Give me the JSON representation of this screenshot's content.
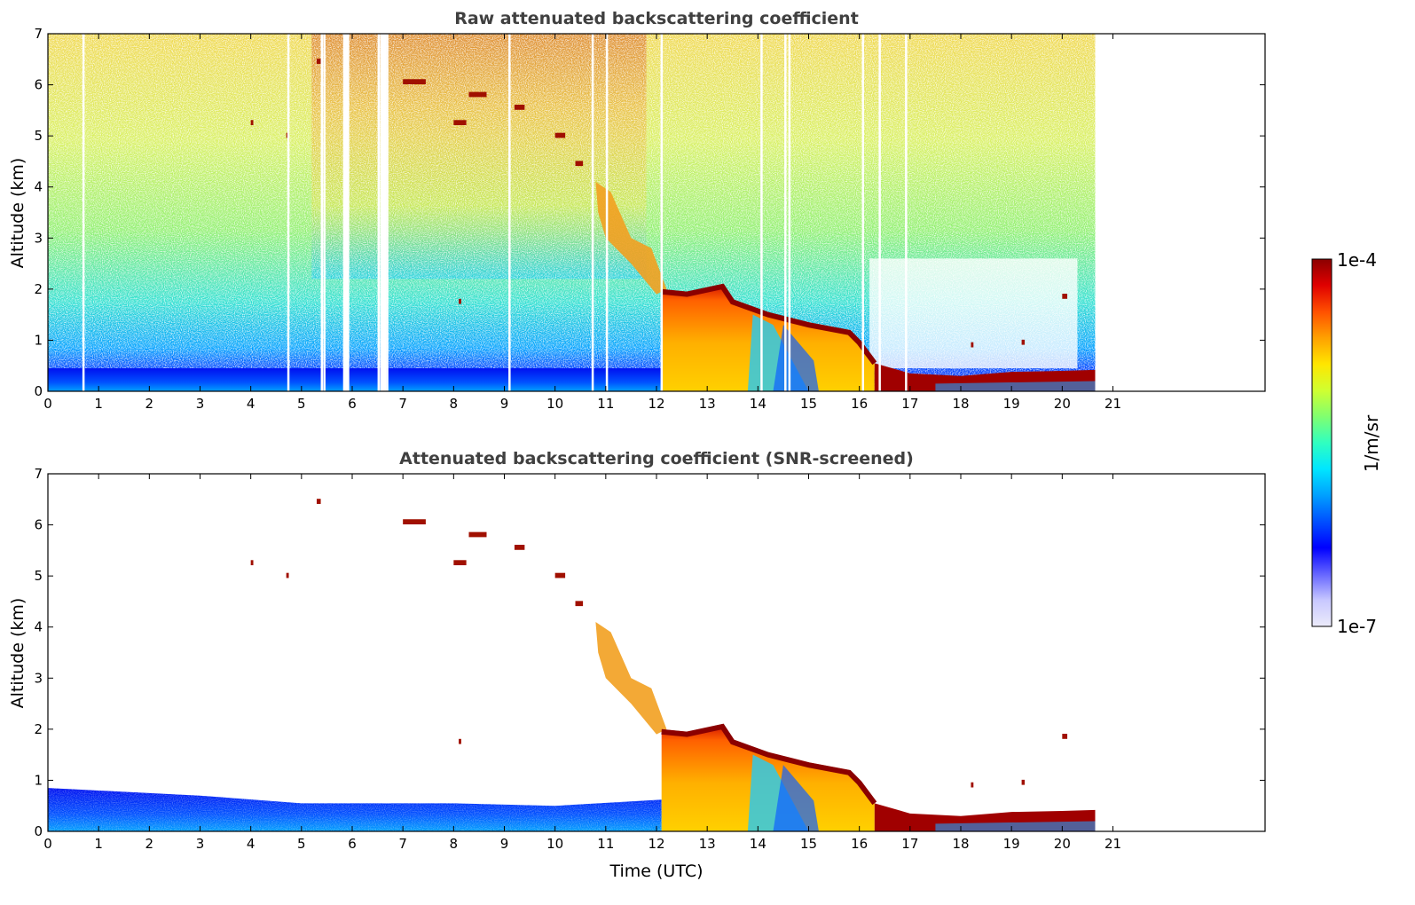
{
  "chart_data": [
    {
      "type": "heatmap",
      "title": "Raw attenuated backscattering coefficient",
      "xlabel": "",
      "ylabel": "Altitude (km)",
      "xlim": [
        0,
        24
      ],
      "ylim": [
        0,
        7
      ],
      "xticks": [
        0,
        1,
        2,
        3,
        4,
        5,
        6,
        7,
        8,
        9,
        10,
        11,
        12,
        13,
        14,
        15,
        16,
        17,
        18,
        19,
        20,
        21
      ],
      "yticks": [
        0,
        1,
        2,
        3,
        4,
        5,
        6,
        7
      ],
      "data_end_time": 20.65,
      "white_gaps_time": [
        0.68,
        4.72,
        5.38,
        5.43,
        5.82,
        5.84,
        6.5,
        6.55,
        6.67,
        9.08,
        10.72,
        11.0,
        12.08,
        14.05,
        14.52,
        14.6,
        16.05,
        16.38,
        16.9
      ],
      "features": [
        {
          "name": "surface layer",
          "t_start": 0,
          "t_end": 12.1,
          "z_top": 0.45,
          "level": "low"
        },
        {
          "name": "descending aerosol layer",
          "t_start": 10.8,
          "t_end": 12.3,
          "z_top_start": 4.0,
          "z_top_end": 2.0,
          "level": "medium-high"
        },
        {
          "name": "boundary layer",
          "t_start": 12.1,
          "t_end": 16.3,
          "z_top_start": 2.1,
          "z_top_end": 0.8,
          "level": "high"
        },
        {
          "name": "stable layer",
          "t_start": 16.3,
          "t_end": 20.65,
          "z_top": 0.35,
          "level": "very high"
        },
        {
          "name": "cirrus fragments",
          "t_start": 4.0,
          "t_end": 10.7,
          "z_range": [
            4.3,
            6.5
          ],
          "level": "very high"
        }
      ]
    },
    {
      "type": "heatmap",
      "title": "Attenuated backscattering coefficient (SNR-screened)",
      "xlabel": "Time (UTC)",
      "ylabel": "Altitude (km)",
      "xlim": [
        0,
        24
      ],
      "ylim": [
        0,
        7
      ],
      "xticks": [
        0,
        1,
        2,
        3,
        4,
        5,
        6,
        7,
        8,
        9,
        10,
        11,
        12,
        13,
        14,
        15,
        16,
        17,
        18,
        19,
        20,
        21
      ],
      "yticks": [
        0,
        1,
        2,
        3,
        4,
        5,
        6,
        7
      ],
      "data_end_time": 20.65,
      "features": [
        {
          "name": "screened surface layer",
          "t_start": 0,
          "t_end": 12.1,
          "z_top": 0.85,
          "level": "low"
        },
        {
          "name": "descending aerosol layer",
          "t_start": 10.9,
          "t_end": 12.2,
          "z_top_start": 4.1,
          "z_top_end": 2.0,
          "level": "medium-high"
        },
        {
          "name": "boundary layer",
          "t_start": 12.1,
          "t_end": 16.3,
          "z_top_start": 2.2,
          "z_top_end": 0.85,
          "level": "high"
        },
        {
          "name": "stable layer",
          "t_start": 16.3,
          "t_end": 20.65,
          "z_top": 0.4,
          "level": "very high"
        }
      ]
    }
  ],
  "colorbar": {
    "label": "1/m/sr",
    "max_label": "1e-4",
    "min_label": "1e-7",
    "colors": [
      "#ecebfa",
      "#c8c8ff",
      "#6464ff",
      "#0000ff",
      "#0050ff",
      "#00a0ff",
      "#00e6ff",
      "#30ffc0",
      "#80ff70",
      "#d0ff30",
      "#ffe600",
      "#ffa000",
      "#ff5000",
      "#e00000",
      "#8b0000"
    ]
  }
}
